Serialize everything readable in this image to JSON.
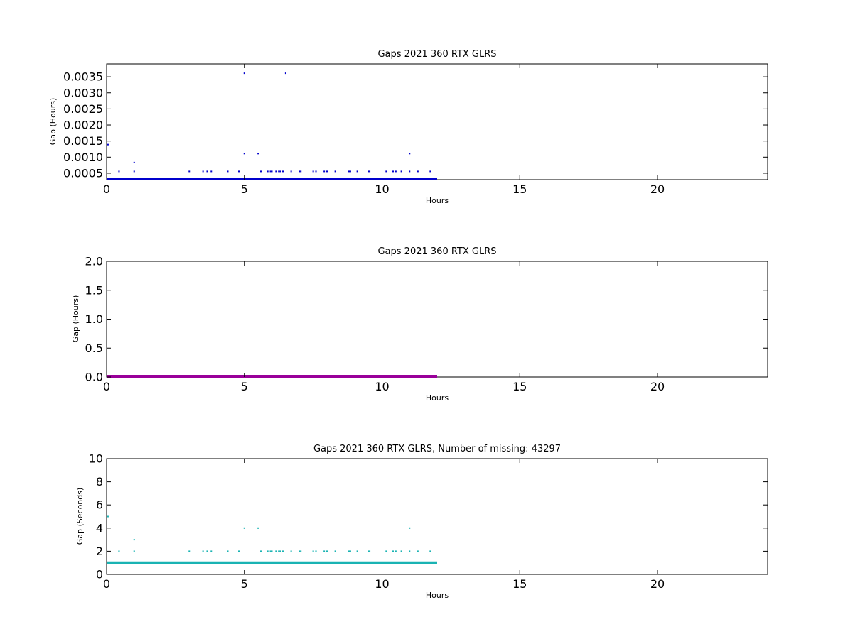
{
  "chart_data": [
    {
      "type": "scatter",
      "title": "Gaps 2021 360 RTX  GLRS",
      "xlabel": "Hours",
      "ylabel": "Gap (Hours)",
      "xlim": [
        0,
        24
      ],
      "ylim": [
        0.0003,
        0.0039
      ],
      "xticks": [
        0,
        5,
        10,
        15,
        20
      ],
      "yticks": [
        0.0005,
        0.001,
        0.0015,
        0.002,
        0.0025,
        0.003,
        0.0035
      ],
      "ytick_labels": [
        "0.0005",
        "0.0010",
        "0.0015",
        "0.0020",
        "0.0025",
        "0.0030",
        "0.0035"
      ],
      "color": "#0000cc",
      "baseline": {
        "x": [
          0,
          12
        ],
        "y": 0.000278
      },
      "series": [
        {
          "x": [
            0.05,
            0.45,
            1.0,
            1.0,
            3.0,
            3.5,
            3.65,
            3.8,
            4.4,
            4.8,
            5.0,
            5.0,
            5.5,
            5.6,
            5.85,
            5.95,
            6.0,
            6.15,
            6.25,
            6.3,
            6.4,
            6.5,
            6.7,
            7.0,
            7.05,
            7.5,
            7.6,
            7.9,
            8.0,
            8.3,
            8.8,
            8.85,
            9.1,
            9.5,
            9.55,
            10.15,
            10.4,
            10.5,
            10.7,
            11.0,
            11.0,
            11.3,
            11.75
          ],
          "y": [
            0.00139,
            0.000556,
            0.000833,
            0.000556,
            0.000556,
            0.000556,
            0.000556,
            0.000556,
            0.000556,
            0.000556,
            0.00361,
            0.00111,
            0.00111,
            0.000556,
            0.000556,
            0.000556,
            0.000556,
            0.000556,
            0.000556,
            0.000556,
            0.000556,
            0.00361,
            0.000556,
            0.000556,
            0.000556,
            0.000556,
            0.000556,
            0.000556,
            0.000556,
            0.000556,
            0.000556,
            0.000556,
            0.000556,
            0.000556,
            0.000556,
            0.000556,
            0.000556,
            0.000556,
            0.000556,
            0.00111,
            0.000556,
            0.000556,
            0.000556
          ]
        }
      ]
    },
    {
      "type": "scatter",
      "title": "Gaps 2021 360 RTX  GLRS",
      "xlabel": "Hours",
      "ylabel": "Gap (Hours)",
      "xlim": [
        0,
        24
      ],
      "ylim": [
        0,
        2
      ],
      "xticks": [
        0,
        5,
        10,
        15,
        20
      ],
      "yticks": [
        0,
        0.5,
        1.0,
        1.5,
        2.0
      ],
      "ytick_labels": [
        "0.0",
        "0.5",
        "1.0",
        "1.5",
        "2.0"
      ],
      "color": "#990099",
      "baseline": {
        "x": [
          0,
          12
        ],
        "y": 0.0
      },
      "series": [
        {
          "x": [],
          "y": []
        }
      ]
    },
    {
      "type": "scatter",
      "title": "Gaps 2021 360 RTX  GLRS, Number of missing: 43297",
      "xlabel": "Hours",
      "ylabel": "Gap (Seconds)",
      "xlim": [
        0,
        24
      ],
      "ylim": [
        0,
        10
      ],
      "xticks": [
        0,
        5,
        10,
        15,
        20
      ],
      "yticks": [
        0,
        2,
        4,
        6,
        8,
        10
      ],
      "ytick_labels": [
        "0",
        "2",
        "4",
        "6",
        "8",
        "10"
      ],
      "color": "#1ab3b3",
      "baseline": {
        "x": [
          0,
          12
        ],
        "y": 1
      },
      "series": [
        {
          "x": [
            0.05,
            0.45,
            1.0,
            1.0,
            3.0,
            3.5,
            3.65,
            3.8,
            4.4,
            4.8,
            5.0,
            5.5,
            5.6,
            5.85,
            5.95,
            6.0,
            6.15,
            6.25,
            6.3,
            6.4,
            6.7,
            7.0,
            7.05,
            7.5,
            7.6,
            7.9,
            8.0,
            8.3,
            8.8,
            8.85,
            9.1,
            9.5,
            9.55,
            10.15,
            10.4,
            10.5,
            10.7,
            11.0,
            11.0,
            11.3,
            11.75
          ],
          "y": [
            5,
            2,
            3,
            2,
            2,
            2,
            2,
            2,
            2,
            2,
            4,
            4,
            2,
            2,
            2,
            2,
            2,
            2,
            2,
            2,
            2,
            2,
            2,
            2,
            2,
            2,
            2,
            2,
            2,
            2,
            2,
            2,
            2,
            2,
            2,
            2,
            2,
            4,
            2,
            2,
            2
          ]
        }
      ]
    }
  ]
}
